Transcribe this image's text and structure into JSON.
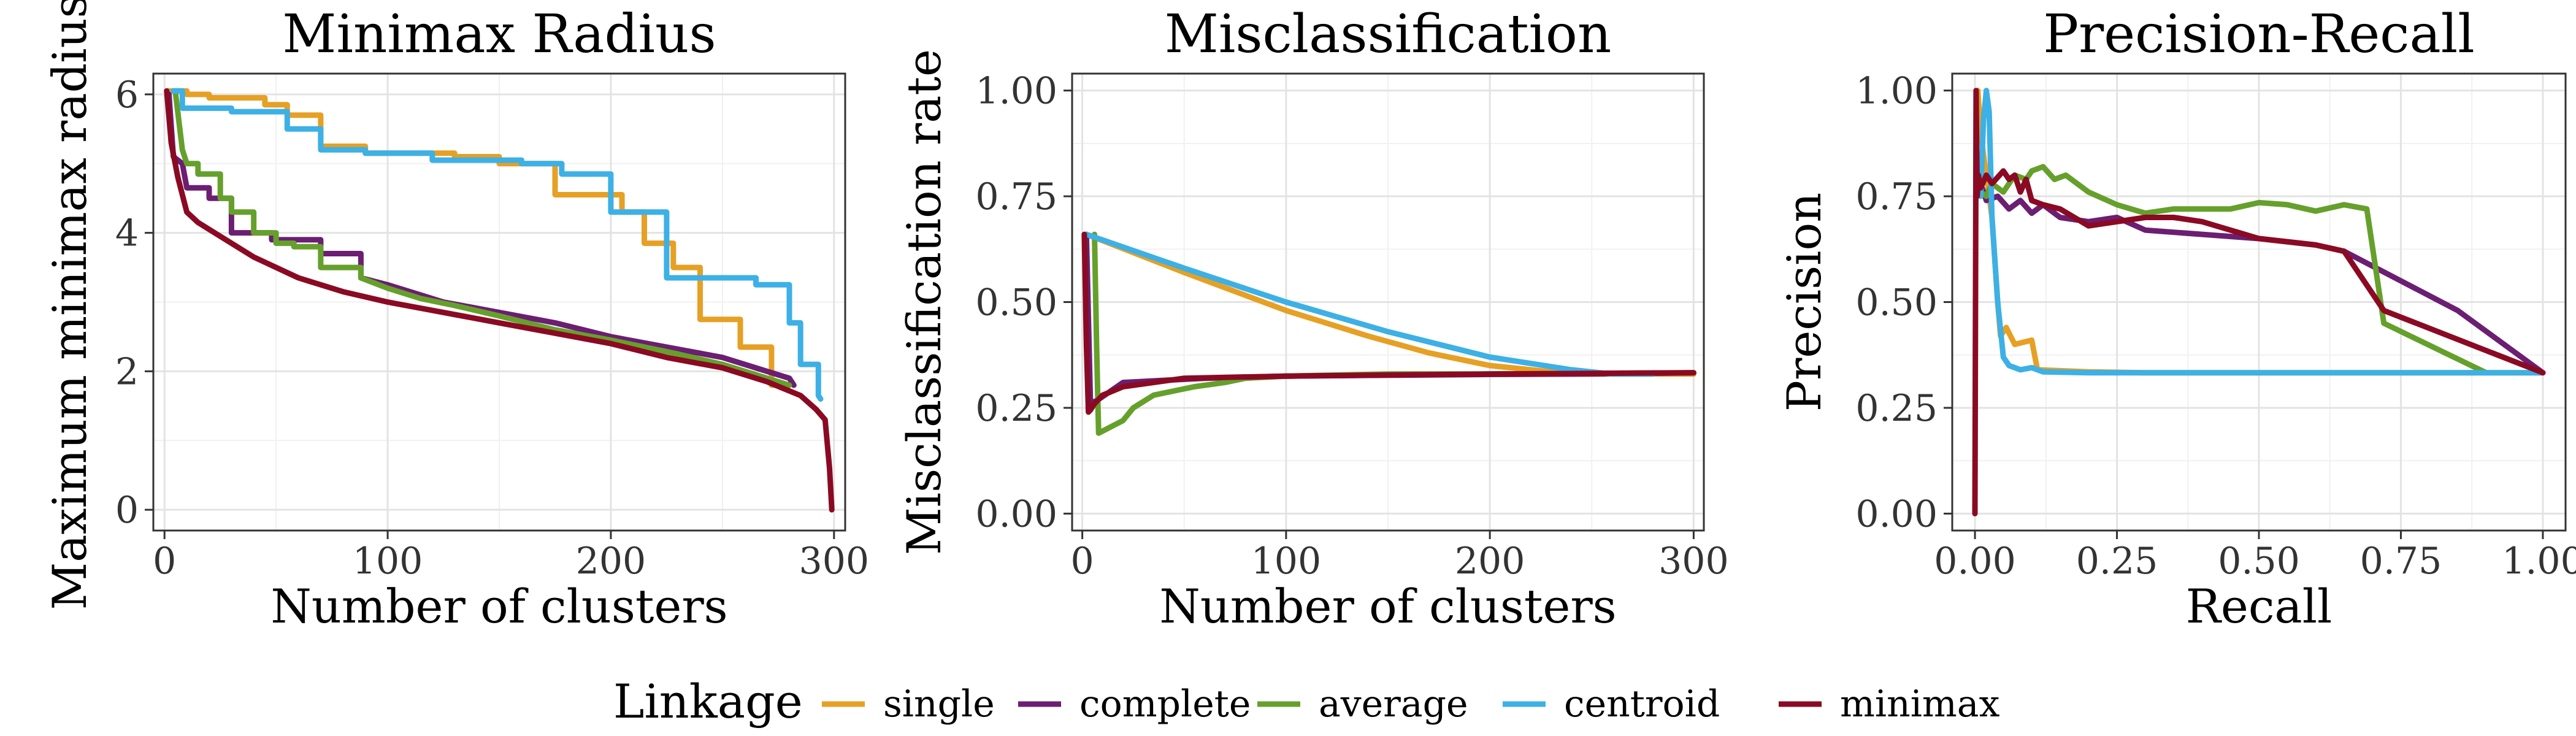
{
  "colors": {
    "single": "#E6A024",
    "complete": "#6B1E72",
    "average": "#66A02C",
    "centroid": "#3DB0E5",
    "minimax": "#8B0A23"
  },
  "legend": {
    "title": "Linkage",
    "items": [
      {
        "key": "single",
        "label": "single"
      },
      {
        "key": "complete",
        "label": "complete"
      },
      {
        "key": "average",
        "label": "average"
      },
      {
        "key": "centroid",
        "label": "centroid"
      },
      {
        "key": "minimax",
        "label": "minimax"
      }
    ]
  },
  "chart_data": [
    {
      "type": "line",
      "title": "Minimax Radius",
      "xlabel": "Number of clusters",
      "ylabel": "Maximum minimax radius",
      "xlim": [
        -5,
        305
      ],
      "ylim": [
        -0.3,
        6.3
      ],
      "xticks": [
        0,
        100,
        200,
        300
      ],
      "xtick_labels": [
        "0",
        "100",
        "200",
        "300"
      ],
      "yticks": [
        0,
        2,
        4,
        6
      ],
      "ytick_labels": [
        "0",
        "2",
        "4",
        "6"
      ],
      "series": [
        {
          "name": "single",
          "x": [
            2,
            10,
            10,
            20,
            20,
            45,
            45,
            55,
            55,
            70,
            70,
            90,
            90,
            130,
            130,
            150,
            150,
            175,
            175,
            205,
            205,
            215,
            215,
            228,
            228,
            240,
            240,
            258,
            258,
            272,
            272,
            278
          ],
          "y": [
            6.05,
            6.05,
            6.0,
            6.0,
            5.95,
            5.95,
            5.85,
            5.85,
            5.7,
            5.7,
            5.25,
            5.25,
            5.15,
            5.15,
            5.1,
            5.1,
            5.0,
            5.0,
            4.55,
            4.55,
            4.3,
            4.3,
            3.85,
            3.85,
            3.5,
            3.5,
            2.75,
            2.75,
            2.35,
            2.35,
            1.8,
            1.8
          ]
        },
        {
          "name": "complete",
          "x": [
            2,
            4,
            8,
            10,
            20,
            20,
            30,
            30,
            48,
            48,
            70,
            70,
            88,
            88,
            100,
            115,
            125,
            150,
            175,
            200,
            225,
            250,
            270,
            280,
            282
          ],
          "y": [
            6.0,
            5.1,
            5.0,
            4.65,
            4.65,
            4.5,
            4.5,
            4.0,
            4.0,
            3.9,
            3.9,
            3.7,
            3.7,
            3.35,
            3.25,
            3.1,
            3.0,
            2.85,
            2.7,
            2.5,
            2.35,
            2.2,
            2.0,
            1.9,
            1.8
          ]
        },
        {
          "name": "average",
          "x": [
            5,
            8,
            10,
            15,
            15,
            25,
            25,
            30,
            30,
            40,
            40,
            50,
            50,
            58,
            58,
            70,
            70,
            88,
            88,
            100,
            115,
            130,
            150,
            175,
            200,
            230,
            250,
            270,
            280
          ],
          "y": [
            6.0,
            5.2,
            5.0,
            5.0,
            4.85,
            4.85,
            4.5,
            4.5,
            4.3,
            4.3,
            4.0,
            4.0,
            3.85,
            3.85,
            3.8,
            3.8,
            3.5,
            3.5,
            3.35,
            3.2,
            3.05,
            2.95,
            2.8,
            2.6,
            2.45,
            2.25,
            2.1,
            1.9,
            1.8
          ]
        },
        {
          "name": "centroid",
          "x": [
            4,
            8,
            8,
            30,
            30,
            55,
            55,
            70,
            70,
            90,
            90,
            120,
            120,
            160,
            160,
            178,
            178,
            200,
            200,
            225,
            225,
            265,
            265,
            280,
            280,
            285,
            285,
            293,
            293,
            294
          ],
          "y": [
            6.05,
            6.05,
            5.8,
            5.8,
            5.75,
            5.75,
            5.5,
            5.5,
            5.2,
            5.2,
            5.15,
            5.15,
            5.05,
            5.05,
            5.0,
            5.0,
            4.85,
            4.85,
            4.3,
            4.3,
            3.35,
            3.35,
            3.25,
            3.25,
            2.7,
            2.7,
            2.1,
            2.1,
            1.65,
            1.6
          ]
        },
        {
          "name": "minimax",
          "x": [
            1,
            3,
            6,
            10,
            15,
            25,
            40,
            60,
            80,
            100,
            125,
            150,
            175,
            200,
            225,
            250,
            270,
            285,
            292,
            296,
            298,
            299
          ],
          "y": [
            6.05,
            5.3,
            4.8,
            4.3,
            4.15,
            3.95,
            3.65,
            3.35,
            3.15,
            3.0,
            2.85,
            2.7,
            2.55,
            2.4,
            2.2,
            2.05,
            1.85,
            1.65,
            1.45,
            1.3,
            0.6,
            0.0
          ]
        }
      ]
    },
    {
      "type": "line",
      "title": "Misclassification",
      "xlabel": "Number of clusters",
      "ylabel": "Misclassification rate",
      "xlim": [
        -5,
        305
      ],
      "ylim": [
        -0.04,
        1.04
      ],
      "xticks": [
        0,
        100,
        200,
        300
      ],
      "xtick_labels": [
        "0",
        "100",
        "200",
        "300"
      ],
      "yticks": [
        0,
        0.25,
        0.5,
        0.75,
        1.0
      ],
      "ytick_labels": [
        "0.00",
        "0.25",
        "0.50",
        "0.75",
        "1.00"
      ],
      "series": [
        {
          "name": "single",
          "x": [
            2,
            50,
            100,
            140,
            170,
            200,
            220,
            240,
            260,
            280,
            300
          ],
          "y": [
            0.66,
            0.57,
            0.48,
            0.42,
            0.38,
            0.35,
            0.34,
            0.33,
            0.33,
            0.33,
            0.33
          ]
        },
        {
          "name": "complete",
          "x": [
            2,
            4,
            8,
            20,
            40,
            60,
            100,
            150,
            200,
            250,
            300
          ],
          "y": [
            0.66,
            0.26,
            0.27,
            0.31,
            0.315,
            0.32,
            0.325,
            0.327,
            0.329,
            0.33,
            0.333
          ]
        },
        {
          "name": "average",
          "x": [
            6,
            7,
            8,
            12,
            20,
            25,
            35,
            45,
            55,
            70,
            80,
            100,
            150,
            200,
            300
          ],
          "y": [
            0.66,
            0.4,
            0.19,
            0.2,
            0.22,
            0.25,
            0.28,
            0.29,
            0.3,
            0.31,
            0.32,
            0.325,
            0.33,
            0.33,
            0.333
          ]
        },
        {
          "name": "centroid",
          "x": [
            2,
            50,
            100,
            150,
            200,
            240,
            260,
            280
          ],
          "y": [
            0.66,
            0.58,
            0.5,
            0.43,
            0.37,
            0.34,
            0.33,
            0.33
          ]
        },
        {
          "name": "minimax",
          "x": [
            1,
            2,
            3,
            4,
            6,
            10,
            20,
            50,
            100,
            200,
            300
          ],
          "y": [
            0.66,
            0.4,
            0.24,
            0.245,
            0.26,
            0.28,
            0.3,
            0.32,
            0.325,
            0.33,
            0.333
          ]
        }
      ]
    },
    {
      "type": "line",
      "title": "Precision-Recall",
      "xlabel": "Recall",
      "ylabel": "Precision",
      "xlim": [
        -0.04,
        1.04
      ],
      "ylim": [
        -0.04,
        1.04
      ],
      "xticks": [
        0,
        0.25,
        0.5,
        0.75,
        1.0
      ],
      "xtick_labels": [
        "0.00",
        "0.25",
        "0.50",
        "0.75",
        "1.00"
      ],
      "yticks": [
        0,
        0.25,
        0.5,
        0.75,
        1.0
      ],
      "ytick_labels": [
        "0.00",
        "0.25",
        "0.50",
        "0.75",
        "1.00"
      ],
      "series": [
        {
          "name": "single",
          "x": [
            0.005,
            0.01,
            0.015,
            0.02,
            0.025,
            0.03,
            0.035,
            0.04,
            0.045,
            0.055,
            0.07,
            0.1,
            0.11,
            0.2,
            0.3,
            0.5,
            1.0
          ],
          "y": [
            1.0,
            0.9,
            0.85,
            0.8,
            0.75,
            0.7,
            0.6,
            0.5,
            0.42,
            0.44,
            0.4,
            0.41,
            0.34,
            0.335,
            0.333,
            0.333,
            0.333
          ]
        },
        {
          "name": "complete",
          "x": [
            0.005,
            0.01,
            0.02,
            0.04,
            0.06,
            0.08,
            0.1,
            0.12,
            0.15,
            0.2,
            0.25,
            0.3,
            0.35,
            0.4,
            0.5,
            0.6,
            0.65,
            0.75,
            0.85,
            1.0
          ],
          "y": [
            0.76,
            0.78,
            0.74,
            0.75,
            0.72,
            0.74,
            0.71,
            0.73,
            0.7,
            0.69,
            0.7,
            0.67,
            0.665,
            0.66,
            0.65,
            0.635,
            0.62,
            0.55,
            0.48,
            0.333
          ]
        },
        {
          "name": "average",
          "x": [
            0.01,
            0.02,
            0.03,
            0.05,
            0.07,
            0.09,
            0.1,
            0.12,
            0.14,
            0.16,
            0.2,
            0.25,
            0.3,
            0.35,
            0.4,
            0.45,
            0.5,
            0.55,
            0.6,
            0.65,
            0.69,
            0.72,
            0.9
          ],
          "y": [
            0.76,
            0.75,
            0.78,
            0.76,
            0.8,
            0.79,
            0.81,
            0.82,
            0.79,
            0.8,
            0.76,
            0.73,
            0.71,
            0.72,
            0.72,
            0.72,
            0.735,
            0.73,
            0.715,
            0.73,
            0.72,
            0.45,
            0.333
          ]
        },
        {
          "name": "centroid",
          "x": [
            0.01,
            0.015,
            0.02,
            0.025,
            0.03,
            0.04,
            0.05,
            0.06,
            0.08,
            0.1,
            0.12,
            0.2,
            0.5,
            1.0
          ],
          "y": [
            0.75,
            0.93,
            1.0,
            0.95,
            0.7,
            0.5,
            0.37,
            0.35,
            0.34,
            0.345,
            0.335,
            0.333,
            0.333,
            0.333
          ]
        },
        {
          "name": "minimax",
          "x": [
            0.0,
            0.002,
            0.004,
            0.006,
            0.01,
            0.02,
            0.03,
            0.05,
            0.06,
            0.07,
            0.08,
            0.09,
            0.1,
            0.12,
            0.15,
            0.2,
            0.25,
            0.3,
            0.35,
            0.4,
            0.5,
            0.6,
            0.65,
            0.72,
            1.0
          ],
          "y": [
            0.0,
            1.0,
            0.75,
            0.8,
            0.77,
            0.8,
            0.78,
            0.81,
            0.79,
            0.8,
            0.76,
            0.79,
            0.74,
            0.73,
            0.72,
            0.68,
            0.69,
            0.7,
            0.7,
            0.69,
            0.65,
            0.635,
            0.62,
            0.48,
            0.333
          ]
        }
      ]
    }
  ]
}
